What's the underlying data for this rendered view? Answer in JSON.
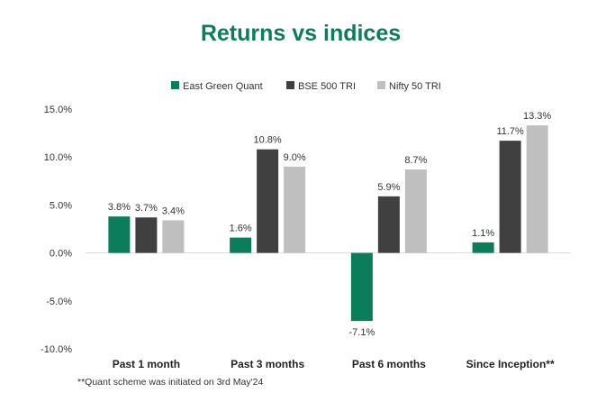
{
  "chart_data": {
    "type": "bar",
    "title": "Returns vs indices",
    "categories": [
      "Past 1 month",
      "Past 3 months",
      "Past 6 months",
      "Since Inception**"
    ],
    "series": [
      {
        "name": "East Green Quant",
        "color": "#0b7d5a",
        "values": [
          3.8,
          1.6,
          -7.1,
          1.1
        ],
        "labels": [
          "3.8%",
          "1.6%",
          "-7.1%",
          "1.1%"
        ]
      },
      {
        "name": "BSE 500 TRI",
        "color": "#404040",
        "values": [
          3.7,
          10.8,
          5.9,
          11.7
        ],
        "labels": [
          "3.7%",
          "10.8%",
          "5.9%",
          "11.7%"
        ]
      },
      {
        "name": "Nifty 50 TRI",
        "color": "#bfbfbf",
        "values": [
          3.4,
          9.0,
          8.7,
          13.3
        ],
        "labels": [
          "3.4%",
          "9.0%",
          "8.7%",
          "13.3%"
        ]
      }
    ],
    "ylim": [
      -10,
      15
    ],
    "yticks": [
      15,
      10,
      5,
      0,
      -5,
      -10
    ],
    "ytick_labels": [
      "15.0%",
      "10.0%",
      "5.0%",
      "0.0%",
      "-5.0%",
      "-10.0%"
    ],
    "legend_position": "top",
    "grid": false,
    "title_color": "#0b7d5a"
  },
  "footnote": "**Quant scheme was initiated on 3rd May'24"
}
